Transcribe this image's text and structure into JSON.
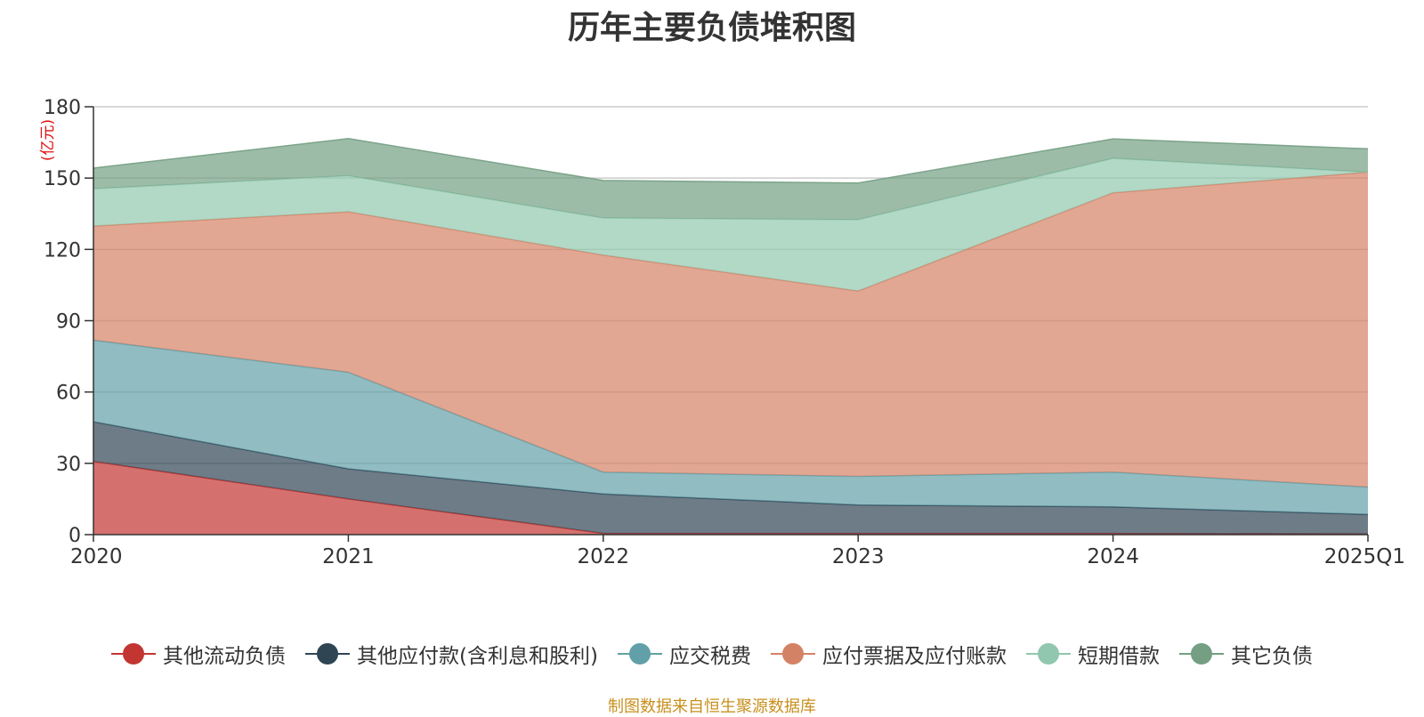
{
  "chart_data": {
    "type": "area",
    "stacked": true,
    "title": "历年主要负债堆积图",
    "unit_label": "(亿元)",
    "categories": [
      "2020",
      "2021",
      "2022",
      "2023",
      "2024",
      "2025Q1"
    ],
    "ylim": [
      0,
      180
    ],
    "yticks": [
      0,
      30,
      60,
      90,
      120,
      150,
      180
    ],
    "grid": true,
    "legend_position": "bottom",
    "series": [
      {
        "name": "其他流动负债",
        "color": "#c23531",
        "values": [
          30.8,
          15.0,
          0.5,
          0.5,
          0.5,
          0.3
        ]
      },
      {
        "name": "其他应付款(含利息和股利)",
        "color": "#2f4554",
        "values": [
          16.7,
          12.7,
          16.6,
          12.0,
          11.2,
          8.2
        ]
      },
      {
        "name": "应交税费",
        "color": "#61a0a8",
        "values": [
          34.3,
          40.6,
          9.2,
          12.0,
          14.6,
          11.5
        ]
      },
      {
        "name": "应付票据及应付账款",
        "color": "#d48265",
        "values": [
          48.0,
          67.5,
          91.3,
          78.0,
          117.5,
          132.5
        ]
      },
      {
        "name": "短期借款",
        "color": "#91c7ae",
        "values": [
          15.7,
          15.2,
          15.6,
          30.0,
          14.5,
          0.0
        ]
      },
      {
        "name": "其它负债",
        "color": "#749f83",
        "values": [
          8.7,
          15.6,
          15.8,
          15.4,
          8.2,
          9.8
        ]
      }
    ]
  },
  "source_note": "制图数据来自恒生聚源数据库"
}
